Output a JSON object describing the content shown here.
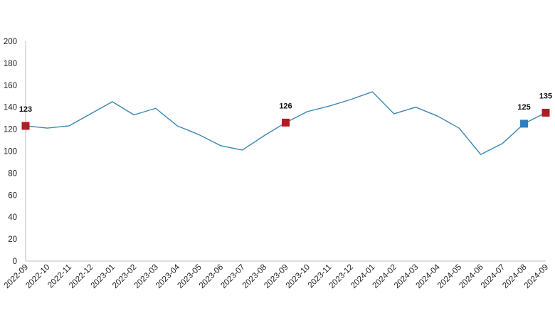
{
  "chart_data": {
    "type": "line",
    "title": "",
    "xlabel": "",
    "ylabel": "",
    "ylim": [
      0,
      200
    ],
    "yticks": [
      0,
      20,
      40,
      60,
      80,
      100,
      120,
      140,
      160,
      180,
      200
    ],
    "grid": false,
    "legend": "none",
    "categories": [
      "2022-09",
      "2022-10",
      "2022-11",
      "2022-12",
      "2023-01",
      "2023-02",
      "2023-03",
      "2023-04",
      "2023-05",
      "2023-06",
      "2023-07",
      "2023-08",
      "2023-09",
      "2023-10",
      "2023-11",
      "2023-12",
      "2024-01",
      "2024-02",
      "2024-03",
      "2024-04",
      "2024-05",
      "2024-06",
      "2024-07",
      "2024-08",
      "2024-09"
    ],
    "series": [
      {
        "values": [
          123,
          121,
          123,
          134,
          145,
          133,
          139,
          123,
          115,
          105,
          101,
          114,
          126,
          136,
          141,
          147,
          154,
          134,
          140,
          132,
          121,
          97,
          107,
          125,
          135
        ],
        "color": "#3a87b0"
      }
    ],
    "highlights": [
      {
        "index": 0,
        "label": "123",
        "color": "#b01c22"
      },
      {
        "index": 12,
        "label": "126",
        "color": "#b01c22"
      },
      {
        "index": 23,
        "label": "125",
        "color": "#2e7fc0"
      },
      {
        "index": 24,
        "label": "135",
        "color": "#b01c22"
      }
    ],
    "axis_color": "#bfbfbf"
  }
}
